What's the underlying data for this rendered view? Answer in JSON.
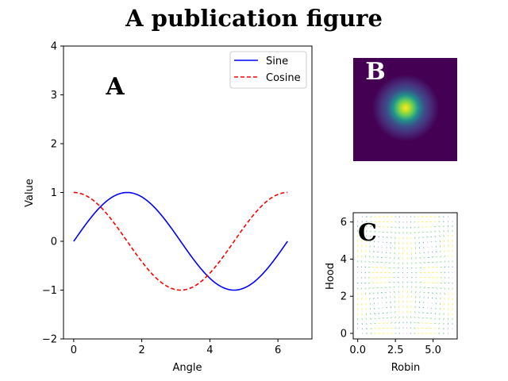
{
  "figure": {
    "title": "A publication figure"
  },
  "chart_data": [
    {
      "type": "line",
      "panel_label": "A",
      "xlabel": "Angle",
      "ylabel": "Value",
      "xlim": [
        -0.3,
        7.0
      ],
      "ylim": [
        -2,
        4
      ],
      "xticks": [
        "0",
        "2",
        "4",
        "6"
      ],
      "yticks": [
        "−2",
        "−1",
        "0",
        "1",
        "2",
        "3",
        "4"
      ],
      "legend": {
        "position": "top-right",
        "entries": [
          "Sine",
          "Cosine"
        ]
      },
      "grid": false,
      "series": [
        {
          "name": "Sine",
          "function": "sin",
          "x_range": [
            0,
            6.2832
          ],
          "color": "#0000ff",
          "style": "solid"
        },
        {
          "name": "Cosine",
          "function": "cos",
          "x_range": [
            0,
            6.2832
          ],
          "color": "#ff0000",
          "style": "dashed"
        }
      ]
    },
    {
      "type": "heatmap",
      "panel_label": "B",
      "colormap": "viridis",
      "description_values": {
        "peak_row_fraction": 0.5,
        "peak_col_fraction": 0.5,
        "max": 1,
        "min": 0
      },
      "axes": "off"
    },
    {
      "type": "quiver",
      "panel_label": "C",
      "xlabel": "Robin",
      "ylabel": "Hood",
      "xlim": [
        -0.3,
        6.6
      ],
      "ylim": [
        -0.3,
        6.5
      ],
      "xticks": [
        "0.0",
        "2.5",
        "5.0"
      ],
      "yticks": [
        "0",
        "2",
        "4",
        "6"
      ],
      "grid_range": [
        0,
        6.2832
      ],
      "colormap": "viridis"
    }
  ]
}
